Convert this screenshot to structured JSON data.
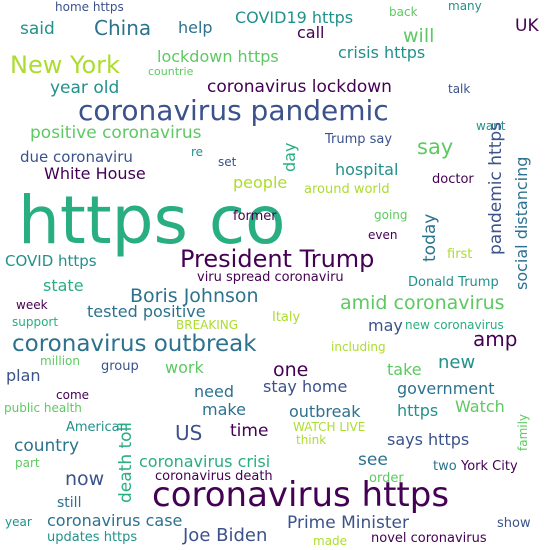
{
  "palette": {
    "deep_purple": "#440154",
    "indigo": "#3b528b",
    "teal_blue": "#2c728e",
    "teal": "#21918c",
    "green": "#28ae80",
    "light_green": "#5ec962",
    "yellow_green": "#addc30",
    "yellow": "#fde725"
  },
  "cloud": {
    "words": [
      "https co",
      "coronavirus https",
      "coronavirus pandemic",
      "President Trump",
      "coronavirus outbreak",
      "New York",
      "Boris Johnson",
      "amid coronavirus",
      "China",
      "coronavirus lockdown",
      "lockdown https",
      "crisis https",
      "COVID19 https",
      "said",
      "help",
      "call",
      "will",
      "UK",
      "year old",
      "positive coronavirus",
      "due coronaviru",
      "White House",
      "say",
      "hospital",
      "people",
      "around world",
      "doctor",
      "former",
      "going",
      "even",
      "today",
      "first",
      "COVID https",
      "state",
      "tested positive",
      "viru spread coronaviru",
      "Donald Trump",
      "week",
      "support",
      "BREAKING",
      "Italy",
      "new coronavirus",
      "may",
      "including",
      "million",
      "plan",
      "group",
      "come",
      "public health",
      "American",
      "part",
      "work",
      "one",
      "stay home",
      "take",
      "new",
      "government",
      "need",
      "make",
      "outbreak",
      "https",
      "Watch",
      "US",
      "time",
      "says https",
      "WATCH LIVE",
      "think",
      "country",
      "now",
      "coronavirus crisi",
      "see",
      "two",
      "York City",
      "coronavirus death",
      "order",
      "still",
      "year",
      "coronavirus case",
      "Prime Minister",
      "Joe Biden",
      "updates https",
      "made",
      "novel coronavirus",
      "show",
      "death toll",
      "amp",
      "pandemic https",
      "social distancing",
      "day",
      "Trump say",
      "re",
      "set",
      "home https",
      "back",
      "many",
      "countrie",
      "talk",
      "want",
      "family"
    ]
  }
}
